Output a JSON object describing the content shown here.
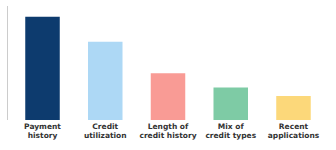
{
  "chart_data": {
    "type": "bar",
    "categories": [
      "Payment\nhistory",
      "Credit\nutilization",
      "Length of\ncredit history",
      "Mix of\ncredit types",
      "Recent\napplications"
    ],
    "values": [
      95,
      72,
      43,
      30,
      22
    ],
    "colors": [
      "#0d3b6e",
      "#add8f5",
      "#f99b95",
      "#7ecba5",
      "#fcd87a"
    ],
    "ylim": [
      0,
      105
    ],
    "tick_labels": "x",
    "grid": false
  }
}
